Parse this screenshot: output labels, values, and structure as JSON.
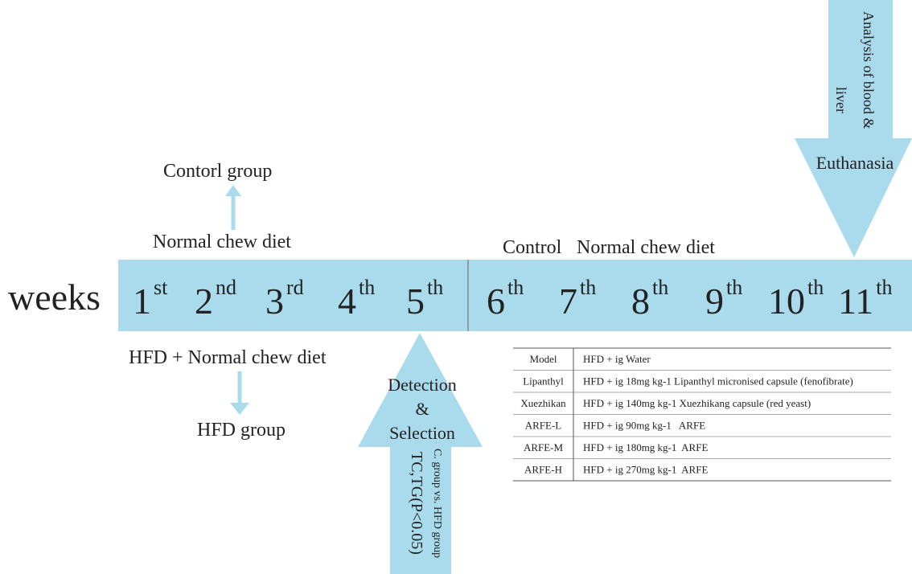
{
  "axis_label": "weeks",
  "weeks": [
    {
      "number": "1",
      "suffix": "st"
    },
    {
      "number": "2",
      "suffix": "nd"
    },
    {
      "number": "3",
      "suffix": "rd"
    },
    {
      "number": "4",
      "suffix": "th"
    },
    {
      "number": "5",
      "suffix": "th"
    },
    {
      "number": "6",
      "suffix": "th"
    },
    {
      "number": "7",
      "suffix": "th"
    },
    {
      "number": "8",
      "suffix": "th"
    },
    {
      "number": "9",
      "suffix": "th"
    },
    {
      "number": "10",
      "suffix": "th"
    },
    {
      "number": "11",
      "suffix": "th"
    }
  ],
  "control_branch": {
    "diet": "Normal chew diet",
    "group": "Contorl group"
  },
  "hfd_branch": {
    "diet": "HFD + Normal chew diet",
    "group": "HFD group"
  },
  "treatment_phase": {
    "group": "Control",
    "diet": "Normal chew diet"
  },
  "selection": {
    "lines": [
      "Detection",
      "&",
      "Selection"
    ],
    "criterion": "C. group vs. HFD group",
    "test": "TC,TG(P<0.05)"
  },
  "endpoint": {
    "analysis_lines": [
      "Analysis of blood &",
      "liver"
    ],
    "label": "Euthanasia"
  },
  "table": {
    "rows": [
      [
        "Model",
        "HFD + ig Water"
      ],
      [
        "Lipanthyl",
        "HFD + ig 18mg kg-1 Lipanthyl micronised capsule (fenofibrate)"
      ],
      [
        "Xuezhikan",
        "HFD + ig 140mg kg-1 Xuezhikang capsule (red yeast)"
      ],
      [
        "ARFE-L",
        "HFD + ig 90mg kg-1   ARFE"
      ],
      [
        "ARFE-M",
        "HFD + ig 180mg kg-1  ARFE"
      ],
      [
        "ARFE-H",
        "HFD + ig 270mg kg-1  ARFE"
      ]
    ]
  }
}
